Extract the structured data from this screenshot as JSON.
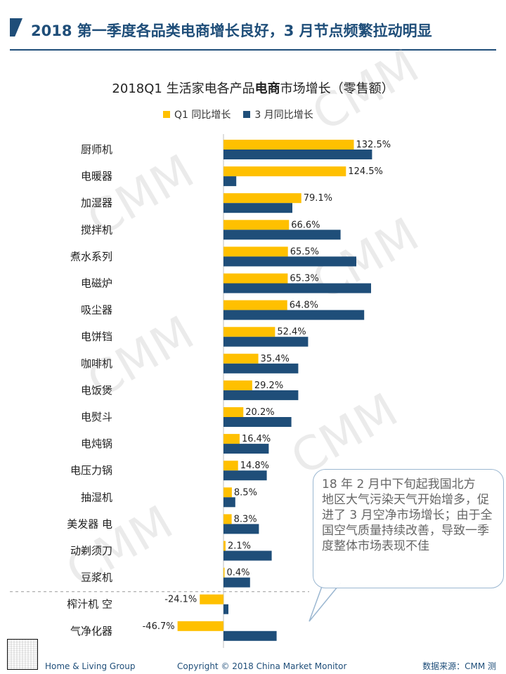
{
  "header": {
    "title": "2018 第一季度各品类电商增长良好，3 月节点频繁拉动明显"
  },
  "colors": {
    "q1": "#FFC000",
    "march": "#1F4E79",
    "title": "#1F4E79",
    "watermark": "#BEBEBE"
  },
  "watermark_text": "CMM",
  "chart_data": {
    "type": "bar",
    "orientation": "horizontal",
    "title_prefix": "2018Q1 生活家电各产品",
    "title_bold": "电商",
    "title_suffix": "市场增长（零售额）",
    "categories": [
      "厨师机",
      "电暖器",
      "加湿器",
      "搅拌机",
      "煮水系列",
      "电磁炉",
      "吸尘器",
      "电饼铛",
      "咖啡机",
      "电饭煲",
      "电熨斗",
      "电炖锅",
      "电压力锅",
      "抽湿机",
      "美发器 电",
      "动剃须刀",
      "豆浆机",
      "榨汁机 空",
      "气净化器"
    ],
    "series": [
      {
        "name": "Q1 同比增长",
        "values": [
          132.5,
          124.5,
          79.1,
          66.6,
          65.5,
          65.3,
          64.8,
          52.4,
          35.4,
          29.2,
          20.2,
          16.4,
          14.8,
          8.5,
          8.3,
          2.1,
          0.4,
          -24.1,
          -46.7
        ],
        "labels": [
          "132.5%",
          "124.5%",
          "79.1%",
          "66.6%",
          "65.5%",
          "65.3%",
          "64.8%",
          "52.4%",
          "35.4%",
          "29.2%",
          "20.2%",
          "16.4%",
          "14.8%",
          "8.5%",
          "8.3%",
          "2.1%",
          "0.4%",
          "-24.1%",
          "-46.7%"
        ]
      },
      {
        "name": "3 月同比增长",
        "values": [
          151,
          13,
          70,
          119,
          135,
          150,
          143,
          86,
          76,
          76,
          69,
          46,
          44,
          12,
          36,
          49,
          27,
          5,
          54
        ]
      }
    ]
  },
  "callout": {
    "text": "18 年 2 月中下旬起我国北方\n地区大气污染天气开始增多，促进了 3 月空净市场增长；由于全国空气质量持续改善，导致一季度整体市场表现不佳"
  },
  "footer": {
    "left": "Home & Living Group",
    "copyright": "Copyright © 2018 China Market Monitor",
    "source": "数据来源：CMM 测"
  }
}
